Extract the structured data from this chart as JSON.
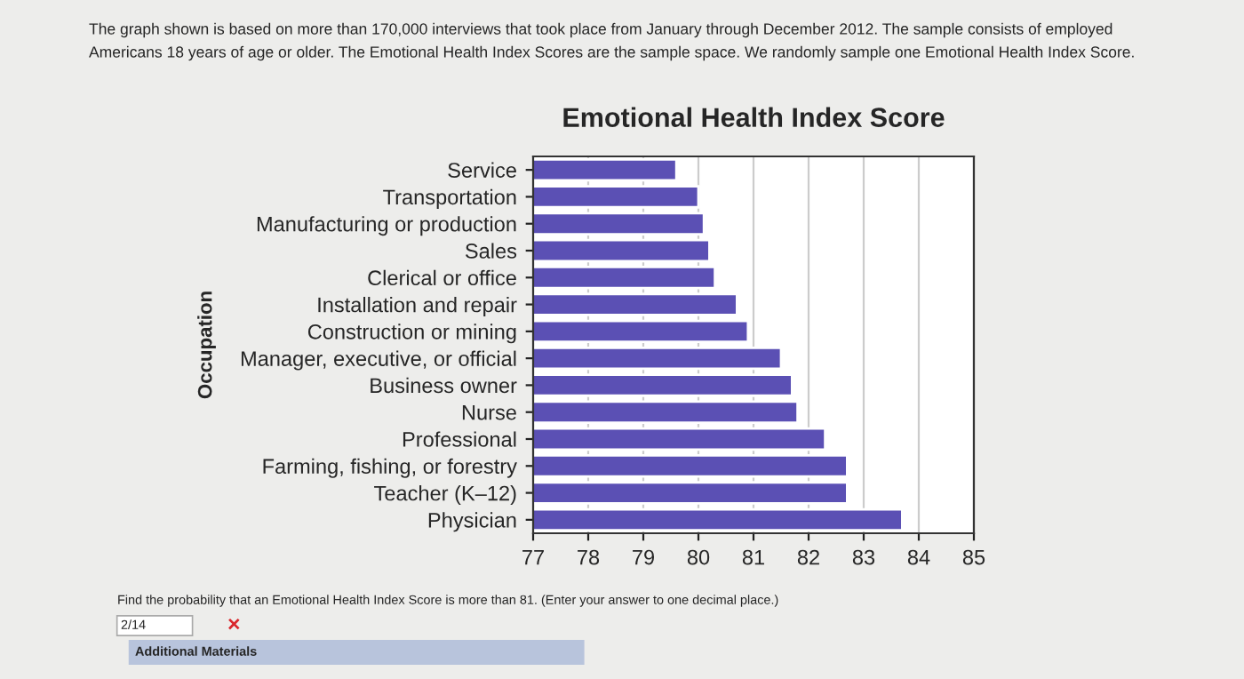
{
  "chart_data": {
    "type": "bar",
    "orientation": "horizontal",
    "title": "Emotional Health Index Score",
    "ylabel": "Occupation",
    "categories": [
      "Service",
      "Transportation",
      "Manufacturing or production",
      "Sales",
      "Clerical or office",
      "Installation and repair",
      "Construction or mining",
      "Manager, executive, or official",
      "Business owner",
      "Nurse",
      "Professional",
      "Farming, fishing, or forestry",
      "Teacher (K–12)",
      "Physician"
    ],
    "values": [
      79.6,
      80.0,
      80.1,
      80.2,
      80.3,
      80.7,
      80.9,
      81.5,
      81.7,
      81.8,
      82.3,
      82.7,
      82.7,
      83.7
    ],
    "color": "#5b50b4",
    "xlim": [
      77,
      85
    ],
    "xticks": [
      77,
      78,
      79,
      80,
      81,
      82,
      83,
      84,
      85
    ],
    "grid": "x",
    "legend": false,
    "annotations": [
      "The graph shown is based on more than 170,000 interviews that took place from January through December 2012. The sample consists of employed",
      "Americans 18 years of age or older. The Emotional Health Index Scores are the sample space. We randomly sample one Emotional Health Index Score.",
      "Find the probability that an Emotional Health Index Score is more than 81. (Enter your answer to one decimal place.)",
      "2/14",
      "×",
      "Additional Materials"
    ]
  }
}
